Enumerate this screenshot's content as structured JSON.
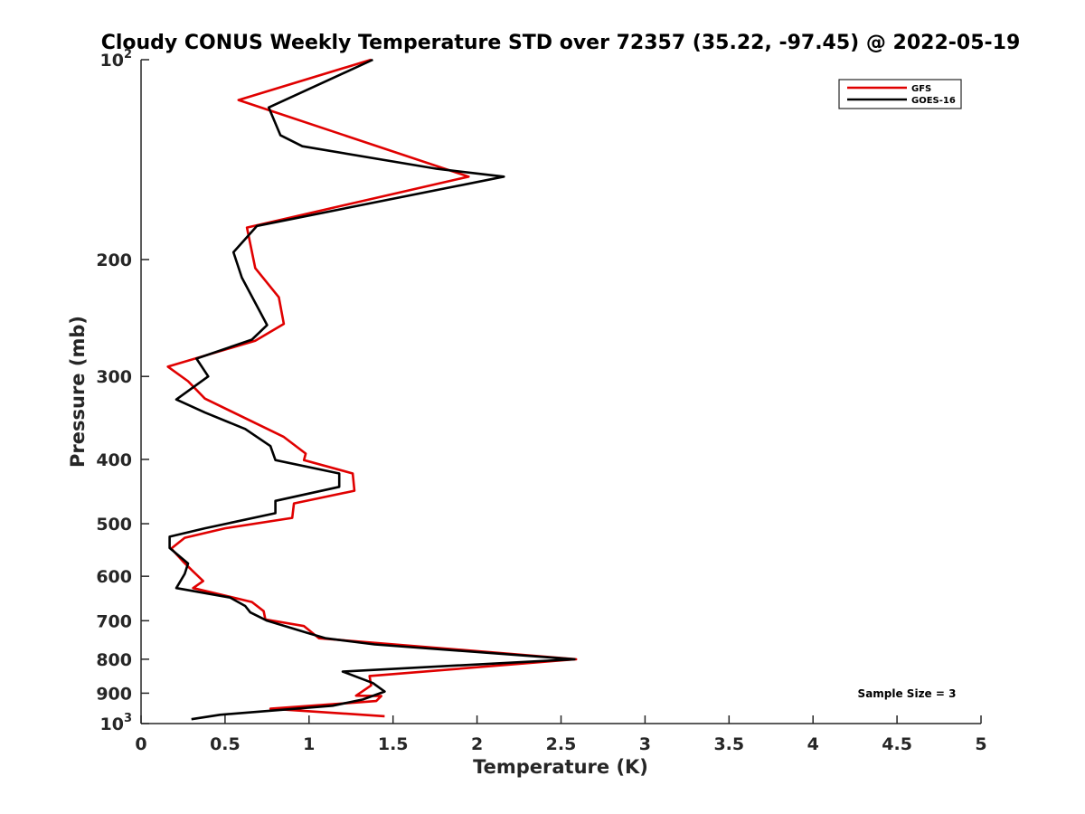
{
  "chart_data": {
    "type": "line",
    "title": "Cloudy CONUS Weekly Temperature STD over 72357 (35.22, -97.45) @ 2022-05-19",
    "xlabel": "Temperature (K)",
    "ylabel": "Pressure (mb)",
    "xlim": [
      0,
      5
    ],
    "ylim": [
      100,
      1000
    ],
    "yscale": "log",
    "y_reversed": true,
    "x_ticks": [
      "0",
      "0.5",
      "1",
      "1.5",
      "2",
      "2.5",
      "3",
      "3.5",
      "4",
      "4.5",
      "5"
    ],
    "y_ticks": [
      {
        "value": 100,
        "base": "10",
        "exp": "2"
      },
      {
        "value": 200,
        "label": "200"
      },
      {
        "value": 300,
        "label": "300"
      },
      {
        "value": 400,
        "label": "400"
      },
      {
        "value": 500,
        "label": "500"
      },
      {
        "value": 600,
        "label": "600"
      },
      {
        "value": 700,
        "label": "700"
      },
      {
        "value": 800,
        "label": "800"
      },
      {
        "value": 900,
        "label": "900"
      },
      {
        "value": 1000,
        "base": "10",
        "exp": "3"
      }
    ],
    "grid": false,
    "legend_position": "top-right",
    "annotation": "Sample Size = 3",
    "series": [
      {
        "name": "GFS",
        "color": "#e00000",
        "points": [
          [
            1.37,
            100
          ],
          [
            0.58,
            115
          ],
          [
            1.95,
            150
          ],
          [
            0.63,
            179
          ],
          [
            0.68,
            206
          ],
          [
            0.82,
            228
          ],
          [
            0.85,
            250
          ],
          [
            0.68,
            265
          ],
          [
            0.16,
            290
          ],
          [
            0.28,
            305
          ],
          [
            0.38,
            324
          ],
          [
            0.85,
            370
          ],
          [
            0.98,
            392
          ],
          [
            0.97,
            401
          ],
          [
            1.26,
            420
          ],
          [
            1.27,
            446
          ],
          [
            0.91,
            466
          ],
          [
            0.9,
            490
          ],
          [
            0.5,
            508
          ],
          [
            0.26,
            525
          ],
          [
            0.18,
            545
          ],
          [
            0.25,
            570
          ],
          [
            0.31,
            590
          ],
          [
            0.37,
            610
          ],
          [
            0.31,
            625
          ],
          [
            0.66,
            656
          ],
          [
            0.73,
            677
          ],
          [
            0.74,
            697
          ],
          [
            0.97,
            713
          ],
          [
            1.06,
            744
          ],
          [
            2.59,
            800
          ],
          [
            1.36,
            848
          ],
          [
            1.37,
            876
          ],
          [
            1.28,
            908
          ],
          [
            1.43,
            909
          ],
          [
            1.4,
            925
          ],
          [
            0.77,
            950
          ],
          [
            1.45,
            975
          ]
        ]
      },
      {
        "name": "GOES-16",
        "color": "#000000",
        "points": [
          [
            1.38,
            100
          ],
          [
            0.76,
            118
          ],
          [
            0.83,
            130
          ],
          [
            0.96,
            135
          ],
          [
            1.76,
            146
          ],
          [
            2.16,
            150
          ],
          [
            0.69,
            178
          ],
          [
            0.55,
            195
          ],
          [
            0.6,
            213
          ],
          [
            0.75,
            251
          ],
          [
            0.66,
            264
          ],
          [
            0.33,
            282
          ],
          [
            0.4,
            300
          ],
          [
            0.21,
            325
          ],
          [
            0.38,
            340
          ],
          [
            0.62,
            360
          ],
          [
            0.77,
            382
          ],
          [
            0.8,
            401
          ],
          [
            1.18,
            420
          ],
          [
            1.18,
            440
          ],
          [
            0.8,
            462
          ],
          [
            0.8,
            482
          ],
          [
            0.38,
            508
          ],
          [
            0.17,
            523
          ],
          [
            0.17,
            544
          ],
          [
            0.28,
            574
          ],
          [
            0.26,
            595
          ],
          [
            0.21,
            625
          ],
          [
            0.53,
            646
          ],
          [
            0.62,
            665
          ],
          [
            0.65,
            680
          ],
          [
            0.75,
            700
          ],
          [
            0.99,
            730
          ],
          [
            1.1,
            744
          ],
          [
            1.39,
            760
          ],
          [
            2.58,
            800
          ],
          [
            1.2,
            835
          ],
          [
            1.38,
            869
          ],
          [
            1.45,
            895
          ],
          [
            1.32,
            920
          ],
          [
            1.14,
            940
          ],
          [
            0.47,
            970
          ],
          [
            0.3,
            985
          ]
        ]
      }
    ]
  }
}
